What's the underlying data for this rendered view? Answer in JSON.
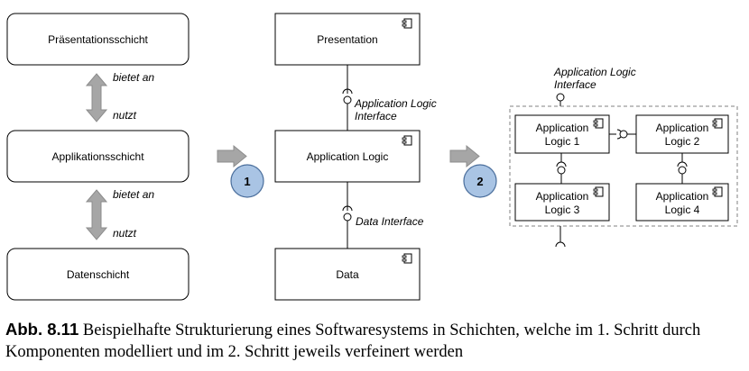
{
  "layers": {
    "presentation": "Präsentationsschicht",
    "application": "Applikationsschicht",
    "data": "Datenschicht",
    "offers_top": "bietet an",
    "uses_top": "nutzt",
    "offers_bottom": "bietet an",
    "uses_bottom": "nutzt"
  },
  "components": {
    "presentation": "Presentation",
    "application_logic": "Application Logic",
    "data": "Data",
    "app_logic_interface_line1": "Application Logic",
    "app_logic_interface_line2": "Interface",
    "data_interface": "Data Interface"
  },
  "steps": {
    "step1": "1",
    "step2": "2"
  },
  "refined": {
    "interface_line1": "Application Logic",
    "interface_line2": "Interface",
    "logic1_line1": "Application",
    "logic1_line2": "Logic 1",
    "logic2_line1": "Application",
    "logic2_line2": "Logic 2",
    "logic3_line1": "Application",
    "logic3_line2": "Logic 3",
    "logic4_line1": "Application",
    "logic4_line2": "Logic 4"
  },
  "colors": {
    "arrow_gray": "#a6a6a6",
    "step_circle_fill": "#a9c4e4",
    "step_circle_stroke": "#4a6e9c",
    "dashed_border": "#808080"
  },
  "caption": {
    "label": "Abb. 8.11",
    "text": "Beispielhafte Strukturierung eines Softwaresystems in Schichten, welche im 1. Schritt durch Komponenten modelliert und im 2. Schritt jeweils verfeinert werden"
  }
}
